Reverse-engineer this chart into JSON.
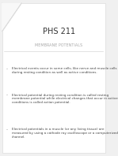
{
  "title": "PHS 211",
  "subtitle": "MEMBRANE POTENTIALS",
  "background_color": "#f0f0f0",
  "title_color": "#333333",
  "subtitle_color": "#aaaaaa",
  "text_color": "#444444",
  "bullet_points": [
    "Electrical events occur in some cells, like nerve and muscle cells during resting condition as well as active conditions.",
    "Electrical potential during resting condition is called resting membrane potential while electrical changes that occur in active conditions is called action potential.",
    "Electrical potentials in a muscle (or any living tissue) are measured by using a cathode ray oscilloscope or a computerized channel."
  ],
  "slide_color": "#ffffff",
  "corner_fold_color": "#cccccc",
  "title_fontsize": 7,
  "subtitle_fontsize": 3.5,
  "bullet_fontsize": 3.0
}
